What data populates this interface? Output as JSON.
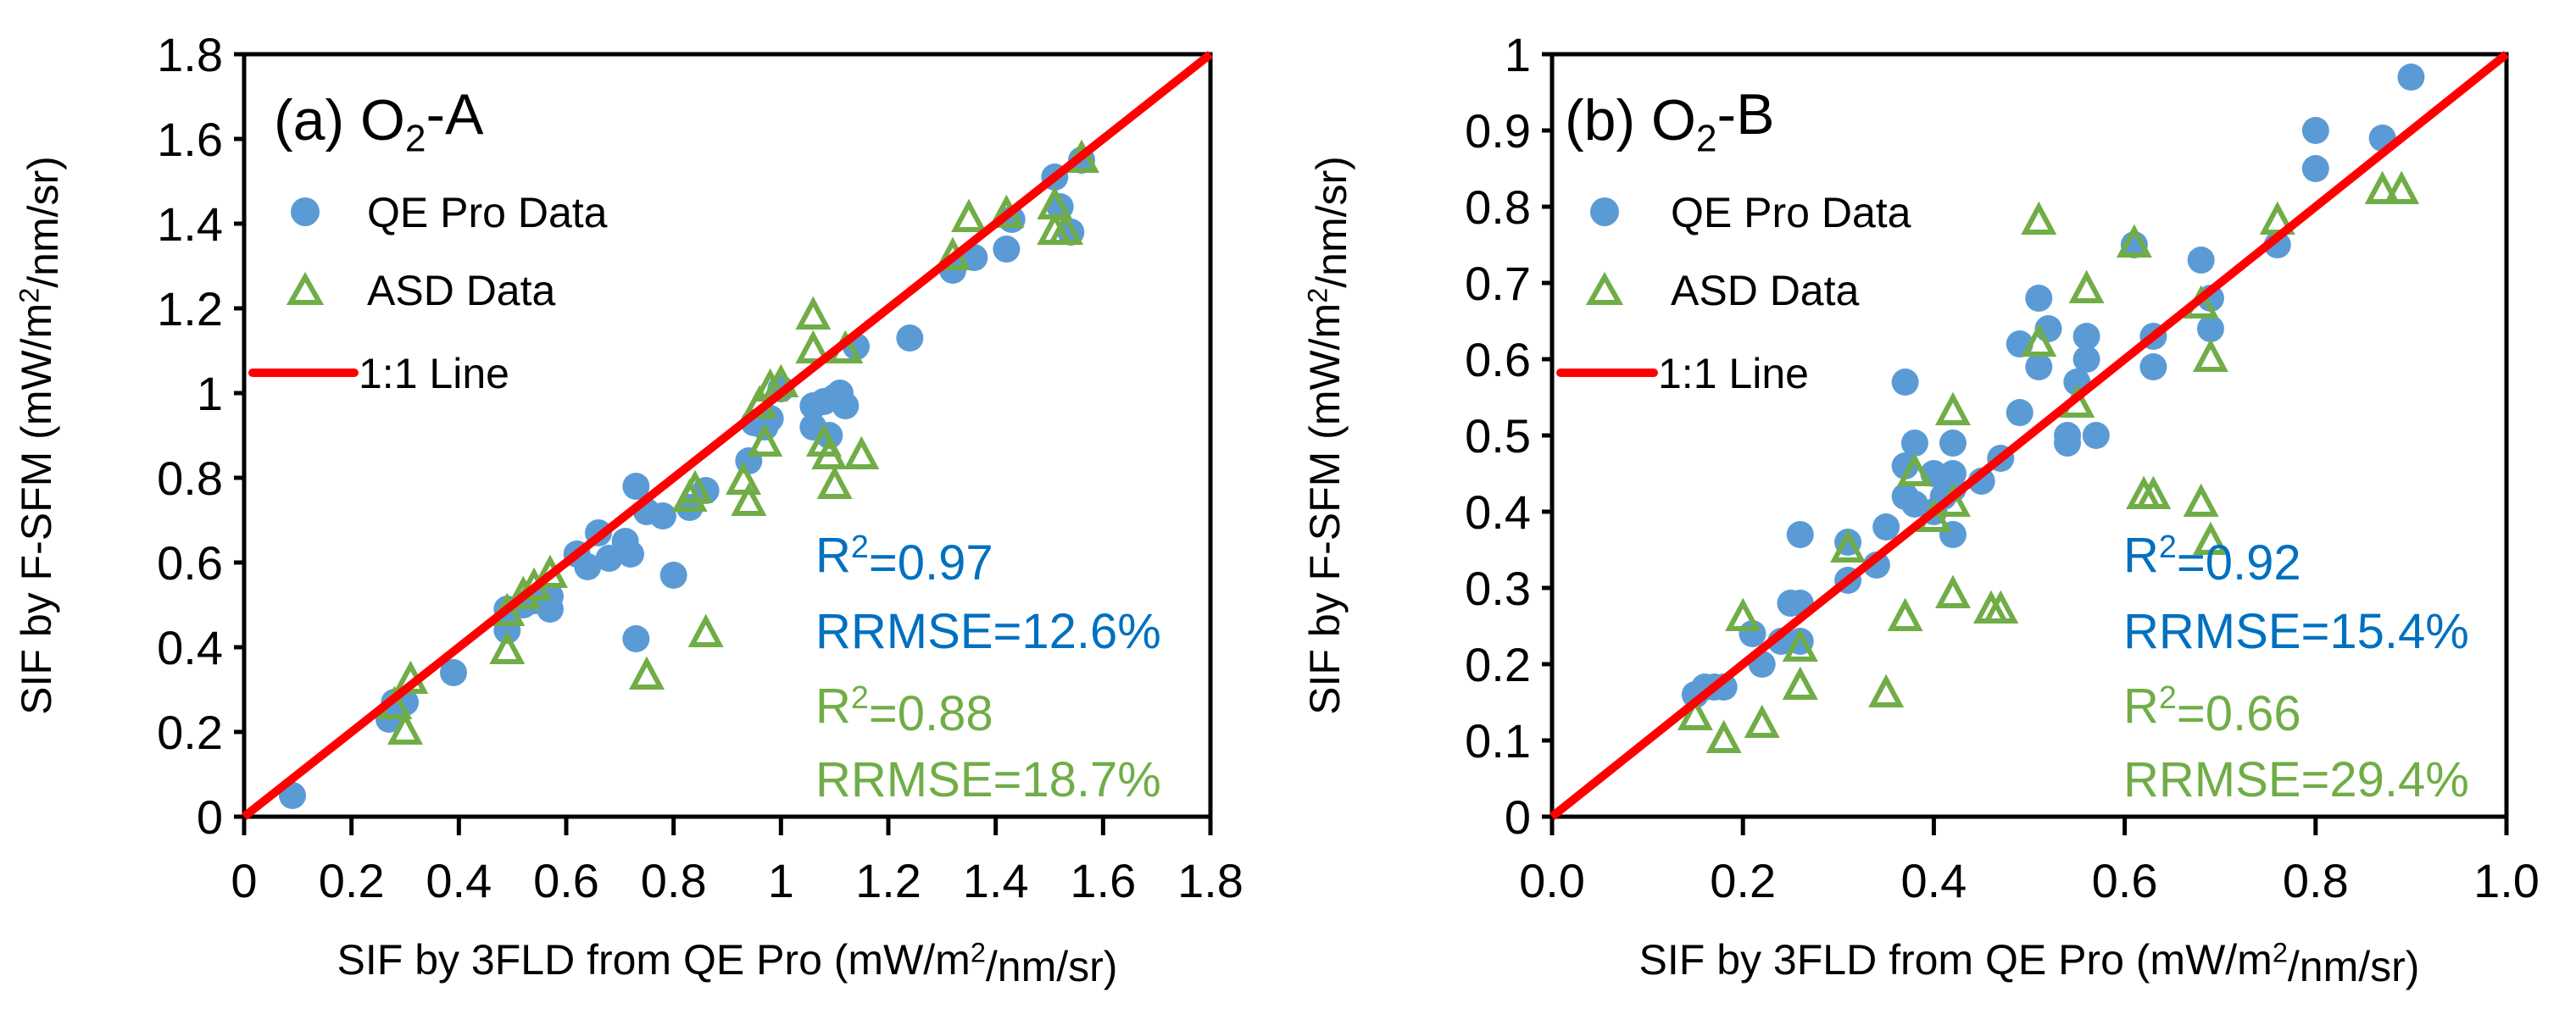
{
  "colors": {
    "qe": "#5b9bd5",
    "asd": "#70ad47",
    "line": "#ff0000",
    "stat_qe": "#0070c0",
    "stat_asd": "#70ad47"
  },
  "chart_data": [
    {
      "type": "scatter",
      "title": {
        "pre": "(a) O",
        "sub": "2",
        "post": "-A"
      },
      "xlabel": {
        "pre": "SIF by 3FLD from QE Pro (mW/m",
        "sup": "2",
        "post": "/nm/sr)"
      },
      "ylabel": {
        "pre": "SIF by F-SFM (mW/m",
        "sup": "2",
        "post": "/nm/sr)"
      },
      "xlim": [
        0,
        1.8
      ],
      "ylim": [
        0,
        1.8
      ],
      "xticks": [
        0,
        0.2,
        0.4,
        0.6,
        0.8,
        1,
        1.2,
        1.4,
        1.6,
        1.8
      ],
      "xtick_labels": [
        "0",
        "0.2",
        "0.4",
        "0.6",
        "0.8",
        "1",
        "1.2",
        "1.4",
        "1.6",
        "1.8"
      ],
      "yticks": [
        0,
        0.2,
        0.4,
        0.6,
        0.8,
        1,
        1.2,
        1.4,
        1.6,
        1.8
      ],
      "ytick_labels": [
        "0",
        "0.2",
        "0.4",
        "0.6",
        "0.8",
        "1",
        "1.2",
        "1.4",
        "1.6",
        "1.8"
      ],
      "legend": {
        "position": "top-left",
        "entries": [
          "QE Pro Data",
          "ASD Data",
          "1:1 Line"
        ]
      },
      "stats": [
        {
          "pre": "R",
          "sup": "2",
          "post": "=0.97",
          "series": "qe"
        },
        {
          "pre": "RRMSE=12.6%",
          "sup": "",
          "post": "",
          "series": "qe"
        },
        {
          "pre": "R",
          "sup": "2",
          "post": "=0.88",
          "series": "asd"
        },
        {
          "pre": "RRMSE=18.7%",
          "sup": "",
          "post": "",
          "series": "asd"
        }
      ],
      "series": [
        {
          "name": "QE Pro Data",
          "marker": "circle",
          "points": [
            [
              0.09,
              0.05
            ],
            [
              0.27,
              0.23
            ],
            [
              0.28,
              0.27
            ],
            [
              0.3,
              0.27
            ],
            [
              0.39,
              0.34
            ],
            [
              0.49,
              0.49
            ],
            [
              0.49,
              0.44
            ],
            [
              0.52,
              0.5
            ],
            [
              0.54,
              0.51
            ],
            [
              0.57,
              0.52
            ],
            [
              0.57,
              0.49
            ],
            [
              0.62,
              0.62
            ],
            [
              0.64,
              0.59
            ],
            [
              0.66,
              0.67
            ],
            [
              0.68,
              0.61
            ],
            [
              0.71,
              0.65
            ],
            [
              0.73,
              0.78
            ],
            [
              0.75,
              0.72
            ],
            [
              0.78,
              0.71
            ],
            [
              0.72,
              0.62
            ],
            [
              0.8,
              0.57
            ],
            [
              0.73,
              0.42
            ],
            [
              0.83,
              0.73
            ],
            [
              0.86,
              0.77
            ],
            [
              0.94,
              0.84
            ],
            [
              0.95,
              0.93
            ],
            [
              0.97,
              0.92
            ],
            [
              0.98,
              0.94
            ],
            [
              1.0,
              1.01
            ],
            [
              1.06,
              0.97
            ],
            [
              1.06,
              0.92
            ],
            [
              1.09,
              0.9
            ],
            [
              1.1,
              0.99
            ],
            [
              1.12,
              0.97
            ],
            [
              1.08,
              0.98
            ],
            [
              1.11,
              1.0
            ],
            [
              1.24,
              1.13
            ],
            [
              1.14,
              1.11
            ],
            [
              1.32,
              1.29
            ],
            [
              1.36,
              1.32
            ],
            [
              1.42,
              1.34
            ],
            [
              1.43,
              1.41
            ],
            [
              1.51,
              1.51
            ],
            [
              1.52,
              1.44
            ],
            [
              1.54,
              1.38
            ],
            [
              1.56,
              1.55
            ]
          ]
        },
        {
          "name": "ASD Data",
          "marker": "triangle",
          "points": [
            [
              0.28,
              0.26
            ],
            [
              0.3,
              0.2
            ],
            [
              0.31,
              0.32
            ],
            [
              0.49,
              0.39
            ],
            [
              0.49,
              0.48
            ],
            [
              0.52,
              0.52
            ],
            [
              0.57,
              0.57
            ],
            [
              0.54,
              0.54
            ],
            [
              0.75,
              0.33
            ],
            [
              0.86,
              0.43
            ],
            [
              0.84,
              0.77
            ],
            [
              0.83,
              0.75
            ],
            [
              0.94,
              0.74
            ],
            [
              0.93,
              0.79
            ],
            [
              0.96,
              0.97
            ],
            [
              0.98,
              1.01
            ],
            [
              1.0,
              1.02
            ],
            [
              0.97,
              0.88
            ],
            [
              1.06,
              1.18
            ],
            [
              1.06,
              1.1
            ],
            [
              1.09,
              0.85
            ],
            [
              1.08,
              0.88
            ],
            [
              1.1,
              0.78
            ],
            [
              1.15,
              0.85
            ],
            [
              1.12,
              1.1
            ],
            [
              1.32,
              1.32
            ],
            [
              1.35,
              1.41
            ],
            [
              1.42,
              1.42
            ],
            [
              1.51,
              1.44
            ],
            [
              1.51,
              1.38
            ],
            [
              1.53,
              1.38
            ],
            [
              1.56,
              1.55
            ]
          ]
        },
        {
          "name": "1:1 Line",
          "marker": "line",
          "points": [
            [
              0,
              0
            ],
            [
              1.8,
              1.8
            ]
          ]
        }
      ]
    },
    {
      "type": "scatter",
      "title": {
        "pre": "(b) O",
        "sub": "2",
        "post": "-B"
      },
      "xlabel": {
        "pre": "SIF by 3FLD from QE Pro (mW/m",
        "sup": "2",
        "post": "/nm/sr)"
      },
      "ylabel": {
        "pre": "SIF by F-SFM  (mW/m",
        "sup": "2",
        "post": "/nm/sr)"
      },
      "xlim": [
        0,
        1.0
      ],
      "ylim": [
        0,
        1.0
      ],
      "xticks": [
        0,
        0.2,
        0.4,
        0.6,
        0.8,
        1.0
      ],
      "xtick_labels": [
        "0.0",
        "0.2",
        "0.4",
        "0.6",
        "0.8",
        "1.0"
      ],
      "yticks": [
        0,
        0.1,
        0.2,
        0.3,
        0.4,
        0.5,
        0.6,
        0.7,
        0.8,
        0.9,
        1
      ],
      "ytick_labels": [
        "0",
        "0.1",
        "0.2",
        "0.3",
        "0.4",
        "0.5",
        "0.6",
        "0.7",
        "0.8",
        "0.9",
        "1"
      ],
      "legend": {
        "position": "top-left",
        "entries": [
          "QE Pro Data",
          "ASD Data",
          "1:1 Line"
        ]
      },
      "stats": [
        {
          "pre": "R",
          "sup": "2",
          "post": "=0.92",
          "series": "qe"
        },
        {
          "pre": "RRMSE=15.4%",
          "sup": "",
          "post": "",
          "series": "qe"
        },
        {
          "pre": "R",
          "sup": "2",
          "post": "=0.66",
          "series": "asd"
        },
        {
          "pre": "RRMSE=29.4%",
          "sup": "",
          "post": "",
          "series": "asd"
        }
      ],
      "series": [
        {
          "name": "QE Pro Data",
          "marker": "circle",
          "points": [
            [
              0.15,
              0.16
            ],
            [
              0.16,
              0.17
            ],
            [
              0.17,
              0.17
            ],
            [
              0.18,
              0.17
            ],
            [
              0.21,
              0.24
            ],
            [
              0.22,
              0.2
            ],
            [
              0.24,
              0.23
            ],
            [
              0.25,
              0.28
            ],
            [
              0.26,
              0.28
            ],
            [
              0.26,
              0.37
            ],
            [
              0.26,
              0.23
            ],
            [
              0.31,
              0.31
            ],
            [
              0.31,
              0.36
            ],
            [
              0.34,
              0.33
            ],
            [
              0.35,
              0.38
            ],
            [
              0.37,
              0.57
            ],
            [
              0.37,
              0.46
            ],
            [
              0.37,
              0.42
            ],
            [
              0.38,
              0.49
            ],
            [
              0.38,
              0.41
            ],
            [
              0.4,
              0.4
            ],
            [
              0.4,
              0.45
            ],
            [
              0.41,
              0.42
            ],
            [
              0.42,
              0.37
            ],
            [
              0.42,
              0.49
            ],
            [
              0.42,
              0.43
            ],
            [
              0.42,
              0.45
            ],
            [
              0.45,
              0.44
            ],
            [
              0.47,
              0.47
            ],
            [
              0.49,
              0.53
            ],
            [
              0.49,
              0.62
            ],
            [
              0.51,
              0.68
            ],
            [
              0.51,
              0.59
            ],
            [
              0.52,
              0.64
            ],
            [
              0.54,
              0.5
            ],
            [
              0.54,
              0.49
            ],
            [
              0.55,
              0.57
            ],
            [
              0.56,
              0.63
            ],
            [
              0.56,
              0.6
            ],
            [
              0.57,
              0.5
            ],
            [
              0.61,
              0.75
            ],
            [
              0.63,
              0.63
            ],
            [
              0.63,
              0.59
            ],
            [
              0.68,
              0.73
            ],
            [
              0.69,
              0.64
            ],
            [
              0.69,
              0.68
            ],
            [
              0.76,
              0.75
            ],
            [
              0.8,
              0.9
            ],
            [
              0.8,
              0.85
            ],
            [
              0.87,
              0.89
            ],
            [
              0.9,
              0.97
            ]
          ]
        },
        {
          "name": "ASD Data",
          "marker": "triangle",
          "points": [
            [
              0.15,
              0.13
            ],
            [
              0.18,
              0.1
            ],
            [
              0.2,
              0.26
            ],
            [
              0.22,
              0.12
            ],
            [
              0.26,
              0.22
            ],
            [
              0.26,
              0.17
            ],
            [
              0.31,
              0.35
            ],
            [
              0.35,
              0.16
            ],
            [
              0.37,
              0.26
            ],
            [
              0.38,
              0.45
            ],
            [
              0.4,
              0.39
            ],
            [
              0.42,
              0.53
            ],
            [
              0.42,
              0.41
            ],
            [
              0.42,
              0.29
            ],
            [
              0.46,
              0.27
            ],
            [
              0.47,
              0.27
            ],
            [
              0.51,
              0.78
            ],
            [
              0.51,
              0.62
            ],
            [
              0.56,
              0.69
            ],
            [
              0.55,
              0.54
            ],
            [
              0.61,
              0.75
            ],
            [
              0.62,
              0.42
            ],
            [
              0.63,
              0.42
            ],
            [
              0.68,
              0.67
            ],
            [
              0.68,
              0.41
            ],
            [
              0.69,
              0.36
            ],
            [
              0.69,
              0.6
            ],
            [
              0.76,
              0.78
            ],
            [
              0.87,
              0.82
            ],
            [
              0.89,
              0.82
            ]
          ]
        },
        {
          "name": "1:1 Line",
          "marker": "line",
          "points": [
            [
              0,
              0
            ],
            [
              1.0,
              1.0
            ]
          ]
        }
      ]
    }
  ]
}
